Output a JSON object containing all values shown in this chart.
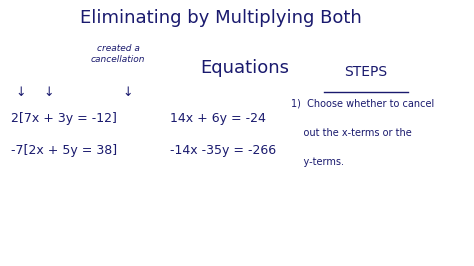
{
  "background_color": "#ffffff",
  "title_line1": "Eliminating by Multiplying Both",
  "title_line2": "Equations",
  "handwritten_note1": "created a",
  "handwritten_note2": "cancellation",
  "steps_label": "STEPS",
  "eq1_left": "2[7x + 3y = -12]",
  "eq2_left": "-7[2x + 5y = 38]",
  "eq1_right": "14x + 6y = -24",
  "eq2_right": "-14x -35y = -266",
  "step1_line1": "1)  Choose whether to cancel",
  "step1_line2": "    out the x-terms or the",
  "step1_line3": "    y-terms.",
  "down_arrow": "↓",
  "text_color": "#1a1a6e",
  "title_fontsize": 13,
  "body_fontsize": 9,
  "steps_fontsize": 10,
  "small_fontsize": 6.5
}
